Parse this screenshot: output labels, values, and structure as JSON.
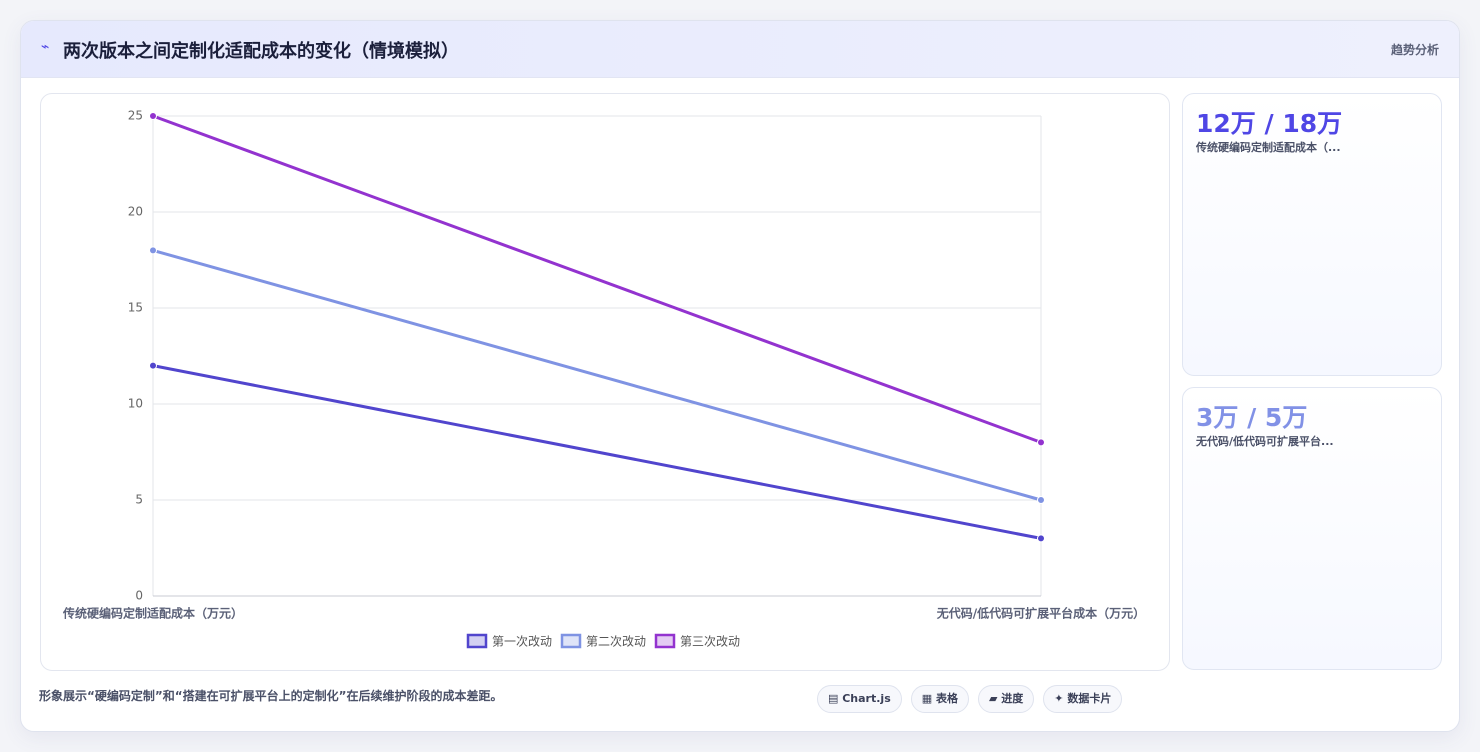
{
  "header": {
    "title": "两次版本之间定制化适配成本的变化（情境模拟）",
    "tag": "趋势分析"
  },
  "chart_data": {
    "type": "line",
    "categories": [
      "传统硬编码定制适配成本（万元）",
      "无代码/低代码可扩展平台成本（万元）"
    ],
    "series": [
      {
        "name": "第一次改动",
        "color": "#5145cd",
        "values": [
          12,
          3
        ]
      },
      {
        "name": "第二次改动",
        "color": "#7f93e3",
        "values": [
          18,
          5
        ]
      },
      {
        "name": "第三次改动",
        "color": "#9333cf",
        "values": [
          25,
          8
        ]
      }
    ],
    "ylim": [
      0,
      25
    ],
    "yticks": [
      0,
      5,
      10,
      15,
      20,
      25
    ],
    "grid": true,
    "legend": "bottom"
  },
  "cards": [
    {
      "value": "12万 / 18万",
      "label": "传统硬编码定制适配成本（...",
      "color": "#4f46e5"
    },
    {
      "value": "3万 / 5万",
      "label": "无代码/低代码可扩展平台...",
      "color": "#8191e6"
    }
  ],
  "footer": {
    "note": "形象展示“硬编码定制”和“搭建在可扩展平台上的定制化”在后续维护阶段的成本差距。",
    "pills": [
      "Chart.js",
      "表格",
      "进度",
      "数据卡片"
    ]
  }
}
